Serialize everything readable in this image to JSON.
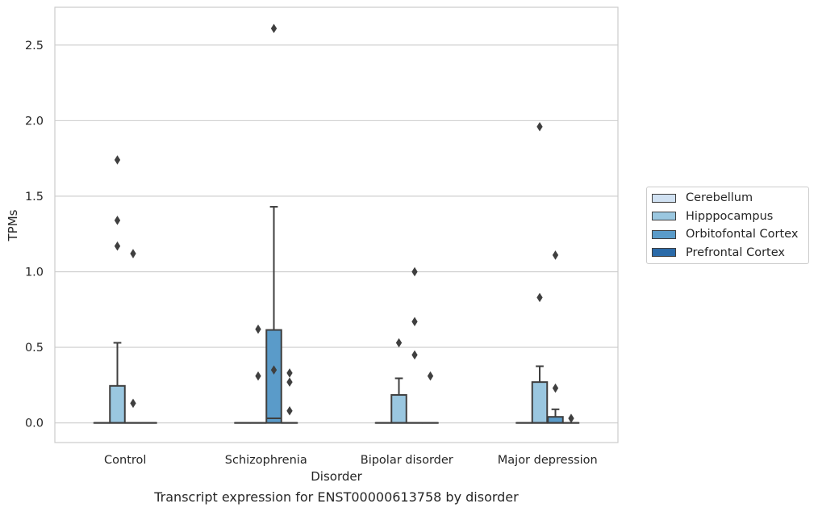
{
  "caption": "Transcript expression for ENST00000613758 by disorder",
  "chart_data": {
    "type": "boxplot",
    "xlabel": "Disorder",
    "ylabel": "TPMs",
    "ylim": [
      -0.13,
      2.75
    ],
    "yticks": [
      0.0,
      0.5,
      1.0,
      1.5,
      2.0,
      2.5
    ],
    "ytick_labels": [
      "0.0",
      "0.5",
      "1.0",
      "1.5",
      "2.0",
      "2.5"
    ],
    "grid": "horizontal",
    "legend_position": "right",
    "categories": [
      "Control",
      "Schizophrenia",
      "Bipolar disorder",
      "Major depression"
    ],
    "series": [
      {
        "name": "Cerebellum",
        "color": "#d0e1f2",
        "boxes": [
          {
            "q1": 0,
            "median": 0,
            "q3": 0,
            "whisker_low": 0,
            "whisker_high": 0,
            "outliers": []
          },
          {
            "q1": 0,
            "median": 0,
            "q3": 0,
            "whisker_low": 0,
            "whisker_high": 0,
            "outliers": []
          },
          {
            "q1": 0,
            "median": 0,
            "q3": 0,
            "whisker_low": 0,
            "whisker_high": 0,
            "outliers": []
          },
          {
            "q1": 0,
            "median": 0,
            "q3": 0,
            "whisker_low": 0,
            "whisker_high": 0,
            "outliers": []
          }
        ]
      },
      {
        "name": "Hipppocampus",
        "color": "#9ac7e0",
        "boxes": [
          {
            "q1": 0,
            "median": 0,
            "q3": 0.245,
            "whisker_low": 0,
            "whisker_high": 0.53,
            "outliers": [
              1.74,
              1.34,
              1.17
            ]
          },
          {
            "q1": 0,
            "median": 0,
            "q3": 0,
            "whisker_low": 0,
            "whisker_high": 0,
            "outliers": [
              0.62,
              0.31
            ]
          },
          {
            "q1": 0,
            "median": 0,
            "q3": 0.185,
            "whisker_low": 0,
            "whisker_high": 0.295,
            "outliers": [
              0.53
            ]
          },
          {
            "q1": 0,
            "median": 0,
            "q3": 0.27,
            "whisker_low": 0,
            "whisker_high": 0.375,
            "outliers": [
              0.83,
              1.96
            ]
          }
        ]
      },
      {
        "name": "Orbitofontal Cortex",
        "color": "#5a9bc9",
        "boxes": [
          {
            "q1": 0,
            "median": 0,
            "q3": 0,
            "whisker_low": 0,
            "whisker_high": 0,
            "outliers": [
              1.12,
              0.13
            ]
          },
          {
            "q1": 0,
            "median": 0.03,
            "q3": 0.615,
            "whisker_low": 0,
            "whisker_high": 1.43,
            "outliers": [
              2.61,
              0.35
            ]
          },
          {
            "q1": 0,
            "median": 0,
            "q3": 0,
            "whisker_low": 0,
            "whisker_high": 0,
            "outliers": [
              0.67,
              0.45,
              1.0
            ]
          },
          {
            "q1": 0,
            "median": 0,
            "q3": 0.04,
            "whisker_low": 0,
            "whisker_high": 0.09,
            "outliers": [
              1.11,
              0.23
            ]
          }
        ]
      },
      {
        "name": "Prefrontal Cortex",
        "color": "#2a6aa8",
        "boxes": [
          {
            "q1": 0,
            "median": 0,
            "q3": 0,
            "whisker_low": 0,
            "whisker_high": 0,
            "outliers": []
          },
          {
            "q1": 0,
            "median": 0,
            "q3": 0,
            "whisker_low": 0,
            "whisker_high": 0,
            "outliers": [
              0.33,
              0.27,
              0.08
            ]
          },
          {
            "q1": 0,
            "median": 0,
            "q3": 0,
            "whisker_low": 0,
            "whisker_high": 0,
            "outliers": [
              0.31
            ]
          },
          {
            "q1": 0,
            "median": 0,
            "q3": 0,
            "whisker_low": 0,
            "whisker_high": 0,
            "outliers": [
              0.03
            ]
          }
        ]
      }
    ]
  }
}
